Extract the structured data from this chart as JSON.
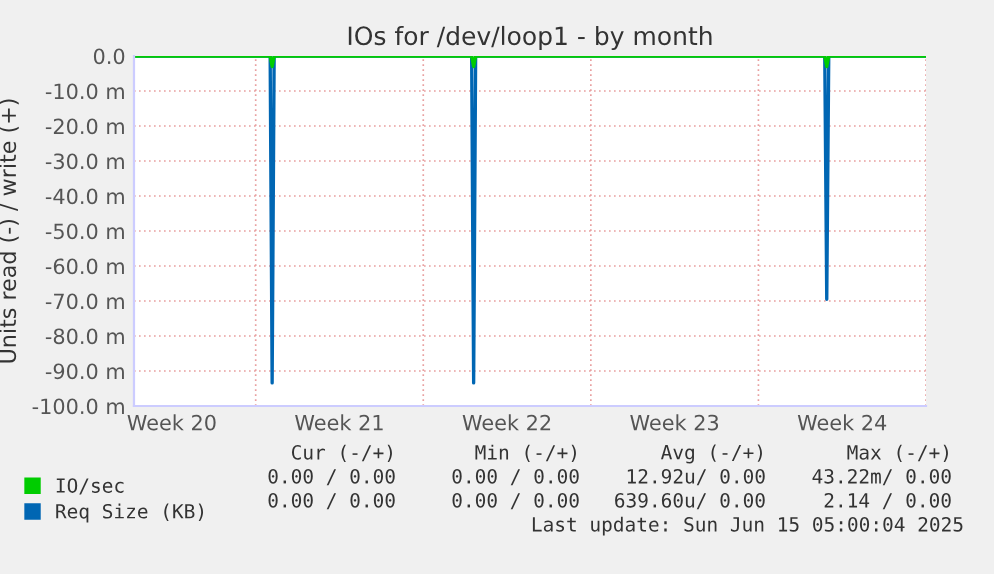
{
  "chart_data": {
    "type": "line",
    "title": "IOs for /dev/loop1 - by month",
    "ylabel": "Units read (-) / write (+)",
    "x": [
      "2025-05-13T22:00",
      "2025-05-19T14:30",
      "2025-05-19T16:30",
      "2025-05-19T18:30",
      "2025-05-28T00:30",
      "2025-05-28T02:30",
      "2025-05-28T04:30",
      "2025-06-11T18:30",
      "2025-06-11T20:30",
      "2025-06-11T22:30",
      "2025-06-16T00:00"
    ],
    "series": [
      {
        "name": "Req Size (KB)",
        "color": "#0066b3",
        "values": [
          0,
          0,
          -93.4,
          0,
          0,
          -93.4,
          0,
          0,
          -69.5,
          0,
          0
        ]
      },
      {
        "name": "IO/sec",
        "color": "#00cc00",
        "values": [
          0,
          0,
          -3,
          0,
          0,
          -3,
          0,
          0,
          -3,
          0,
          0
        ]
      }
    ],
    "xlim": [
      "2025-05-13T22:00",
      "2025-06-16T00:00"
    ],
    "xticks": [
      {
        "value": "2025-05-15T12:00",
        "label": "Week 20"
      },
      {
        "value": "2025-05-19",
        "label": null
      },
      {
        "value": "2025-05-22T12:00",
        "label": "Week 21"
      },
      {
        "value": "2025-05-26",
        "label": null
      },
      {
        "value": "2025-05-29T12:00",
        "label": "Week 22"
      },
      {
        "value": "2025-06-02",
        "label": null
      },
      {
        "value": "2025-06-05T12:00",
        "label": "Week 23"
      },
      {
        "value": "2025-06-09",
        "label": null
      },
      {
        "value": "2025-06-12T12:00",
        "label": "Week 24"
      },
      {
        "value": "2025-06-16",
        "label": null
      }
    ],
    "ylim": [
      -100,
      0
    ],
    "yticks": [
      {
        "value": 0,
        "label": "0.0"
      },
      {
        "value": -10,
        "label": "-10.0 m"
      },
      {
        "value": -20,
        "label": "-20.0 m"
      },
      {
        "value": -30,
        "label": "-30.0 m"
      },
      {
        "value": -40,
        "label": "-40.0 m"
      },
      {
        "value": -50,
        "label": "-50.0 m"
      },
      {
        "value": -60,
        "label": "-60.0 m"
      },
      {
        "value": -70,
        "label": "-70.0 m"
      },
      {
        "value": -80,
        "label": "-80.0 m"
      },
      {
        "value": -90,
        "label": "-90.0 m"
      },
      {
        "value": -100,
        "label": "-100.0 m"
      }
    ],
    "grid": true,
    "legend": "bottom left",
    "marker": "none",
    "line_style": "solid",
    "annotations": [
      "Cur (-/+)",
      "Min (-/+)",
      "Avg (-/+)",
      "Max (-/+)",
      "0.00 / 0.00",
      "0.00 / 0.00",
      "12.92u/ 0.00",
      "43.22m/ 0.00",
      "0.00 / 0.00",
      "0.00 / 0.00",
      "639.60u/ 0.00",
      "2.14 / 0.00",
      "Last update: Sun Jun 15 05:00:04 2025"
    ]
  }
}
